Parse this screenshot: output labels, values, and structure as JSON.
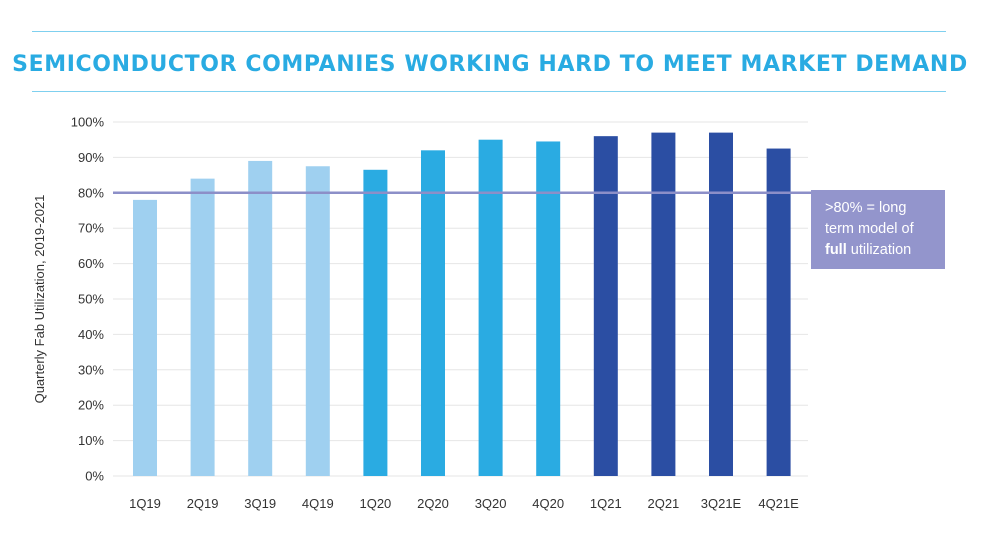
{
  "colors": {
    "title": "#29abe2",
    "rule": "#7fd0ef",
    "reference_line": "#8c8fc8",
    "annotation_bg": "#9395cc",
    "gridline": "#e6e6e6",
    "text": "#333333",
    "bar_2019": "#9fd0f0",
    "bar_2020": "#2aabe2",
    "bar_2021": "#2b4ea3"
  },
  "chart_data": {
    "type": "bar",
    "title": "SEMICONDUCTOR COMPANIES WORKING HARD TO MEET MARKET DEMAND",
    "ylabel": "Quarterly Fab Utilization, 2019-2021",
    "xlabel": "",
    "ylim": [
      0,
      100
    ],
    "y_ticks": [
      "0%",
      "10%",
      "20%",
      "30%",
      "40%",
      "50%",
      "60%",
      "70%",
      "80%",
      "90%",
      "100%"
    ],
    "categories": [
      "1Q19",
      "2Q19",
      "3Q19",
      "4Q19",
      "1Q20",
      "2Q20",
      "3Q20",
      "4Q20",
      "1Q21",
      "2Q21",
      "3Q21E",
      "4Q21E"
    ],
    "values": [
      78,
      84,
      89,
      87.5,
      86.5,
      92,
      95,
      94.5,
      96,
      97,
      97,
      92.5
    ],
    "bar_colors": [
      "bar_2019",
      "bar_2019",
      "bar_2019",
      "bar_2019",
      "bar_2020",
      "bar_2020",
      "bar_2020",
      "bar_2020",
      "bar_2021",
      "bar_2021",
      "bar_2021",
      "bar_2021"
    ],
    "reference_line": 80,
    "grid": true,
    "annotation": {
      "line1": ">80% = long",
      "line2": "term model of",
      "line3_bold": "full",
      "line3_rest": " utilization"
    }
  }
}
